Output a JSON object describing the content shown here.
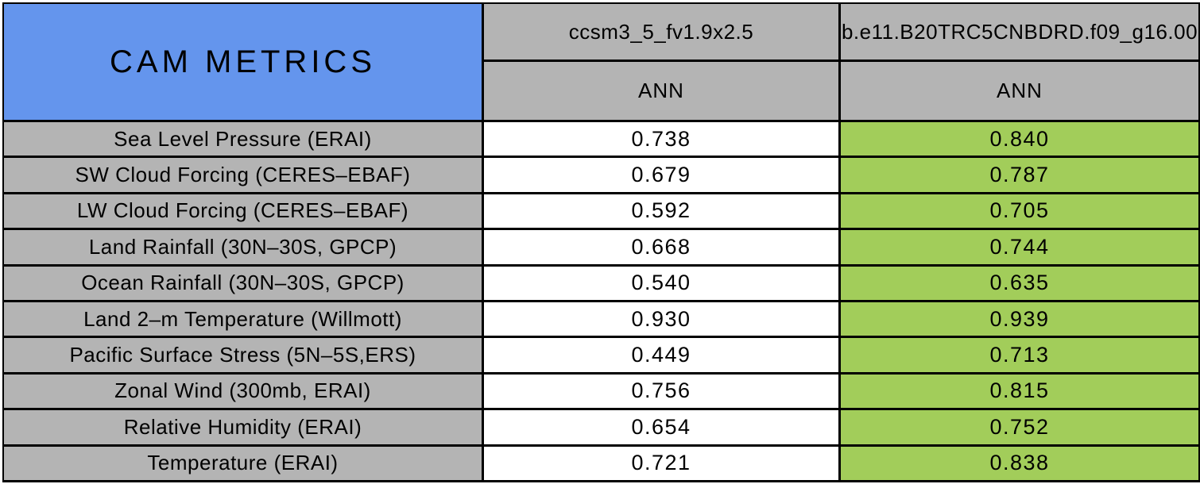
{
  "colors": {
    "corner_blue": "#6495ED",
    "header_gray": "#B4B4B4",
    "value_white": "#FFFFFF",
    "highlight_green": "#A2CD5A",
    "grid_black": "#000000"
  },
  "chart_data": {
    "type": "table",
    "title": "CAM METRICS",
    "legend_note_layout": "corner title spans two header rows; column 1 values on white, column 2 values highlighted green",
    "columns": [
      {
        "model": "ccsm3_5_fv1.9x2.5",
        "season": "ANN"
      },
      {
        "model": "b.e11.B20TRC5CNBDRD.f09_g16.00",
        "season": "ANN"
      }
    ],
    "rows": [
      {
        "metric": "Sea Level Pressure (ERAI)",
        "values": [
          "0.738",
          "0.840"
        ]
      },
      {
        "metric": "SW Cloud Forcing (CERES–EBAF)",
        "values": [
          "0.679",
          "0.787"
        ]
      },
      {
        "metric": "LW Cloud Forcing (CERES–EBAF)",
        "values": [
          "0.592",
          "0.705"
        ]
      },
      {
        "metric": "Land Rainfall (30N–30S, GPCP)",
        "values": [
          "0.668",
          "0.744"
        ]
      },
      {
        "metric": "Ocean Rainfall (30N–30S, GPCP)",
        "values": [
          "0.540",
          "0.635"
        ]
      },
      {
        "metric": "Land 2–m Temperature (Willmott)",
        "values": [
          "0.930",
          "0.939"
        ]
      },
      {
        "metric": "Pacific Surface Stress (5N–5S,ERS)",
        "values": [
          "0.449",
          "0.713"
        ]
      },
      {
        "metric": "Zonal Wind (300mb, ERAI)",
        "values": [
          "0.756",
          "0.815"
        ]
      },
      {
        "metric": "Relative Humidity (ERAI)",
        "values": [
          "0.654",
          "0.752"
        ]
      },
      {
        "metric": "Temperature (ERAI)",
        "values": [
          "0.721",
          "0.838"
        ]
      }
    ]
  }
}
